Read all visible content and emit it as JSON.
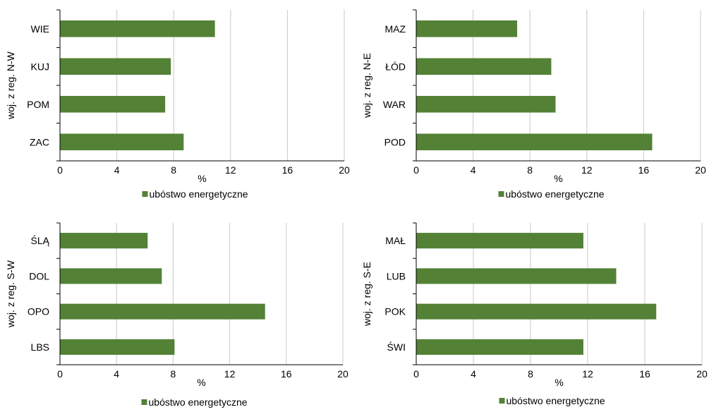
{
  "colors": {
    "bar": "#538135",
    "grid": "#c8c8c8",
    "axis": "#000000"
  },
  "chart_data": [
    {
      "type": "bar",
      "orientation": "horizontal",
      "categories": [
        "WIE",
        "KUJ",
        "POM",
        "ZAC"
      ],
      "series": [
        {
          "name": "ubóstwo energetyczne",
          "values": [
            10.9,
            7.8,
            7.4,
            8.7
          ]
        }
      ],
      "xlabel": "%",
      "ylabel": "woj. z reg. N-W",
      "xlim": [
        0,
        20
      ],
      "xticks": [
        "0",
        "4",
        "8",
        "12",
        "16",
        "20"
      ],
      "grid": true,
      "legend": "bottom"
    },
    {
      "type": "bar",
      "orientation": "horizontal",
      "categories": [
        "MAZ",
        "ŁÓD",
        "WAR",
        "POD"
      ],
      "series": [
        {
          "name": "ubóstwo energetyczne",
          "values": [
            7.1,
            9.5,
            9.8,
            16.6
          ]
        }
      ],
      "xlabel": "%",
      "ylabel": "woj. z reg. N-E",
      "xlim": [
        0,
        20
      ],
      "xticks": [
        "0",
        "4",
        "8",
        "12",
        "16",
        "20"
      ],
      "grid": true,
      "legend": "bottom"
    },
    {
      "type": "bar",
      "orientation": "horizontal",
      "categories": [
        "ŚLĄ",
        "DOL",
        "OPO",
        "LBS"
      ],
      "series": [
        {
          "name": "ubóstwo energetyczne",
          "values": [
            6.2,
            7.2,
            14.5,
            8.1
          ]
        }
      ],
      "xlabel": "%",
      "ylabel": "woj. z reg. S-W",
      "xlim": [
        0,
        20
      ],
      "xticks": [
        "0",
        "4",
        "8",
        "12",
        "16",
        "20"
      ],
      "grid": true,
      "legend": "bottom"
    },
    {
      "type": "bar",
      "orientation": "horizontal",
      "categories": [
        "MAŁ",
        "LUB",
        "POK",
        "ŚWI"
      ],
      "series": [
        {
          "name": "ubóstwo energetyczne",
          "values": [
            11.7,
            14.0,
            16.8,
            11.7
          ]
        }
      ],
      "xlabel": "%",
      "ylabel": "woj. z reg. S-E",
      "xlim": [
        0,
        20
      ],
      "xticks": [
        "0",
        "4",
        "8",
        "12",
        "16",
        "20"
      ],
      "grid": true,
      "legend": "bottom"
    }
  ]
}
